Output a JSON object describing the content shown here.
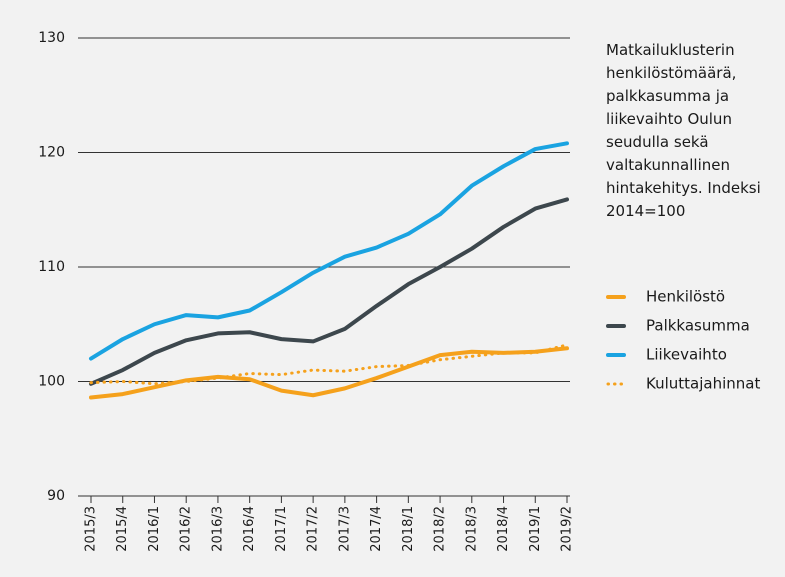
{
  "chart_data": {
    "type": "line",
    "title": "Matkailuklusterin henkilöstömäärä, palkkasumma ja liikevaihto Oulun seudulla sekä valtakunnallinen hintakehitys. Indeksi 2014=100",
    "categories": [
      "2015/3",
      "2015/4",
      "2016/1",
      "2016/2",
      "2016/3",
      "2016/4",
      "2017/1",
      "2017/2",
      "2017/3",
      "2017/4",
      "2018/1",
      "2018/2",
      "2018/3",
      "2018/4",
      "2019/1",
      "2019/2"
    ],
    "series": [
      {
        "name": "Henkilöstö",
        "color": "#f5a11c",
        "style": "solid",
        "values": [
          98.6,
          98.9,
          99.5,
          100.1,
          100.4,
          100.2,
          99.2,
          98.8,
          99.4,
          100.3,
          101.3,
          102.3,
          102.6,
          102.5,
          102.6,
          102.9
        ]
      },
      {
        "name": "Palkkasumma",
        "color": "#3d474d",
        "style": "solid",
        "values": [
          99.8,
          101.0,
          102.5,
          103.6,
          104.2,
          104.3,
          103.7,
          103.5,
          104.6,
          106.6,
          108.5,
          110.0,
          111.6,
          113.5,
          115.1,
          115.9
        ]
      },
      {
        "name": "Liikevaihto",
        "color": "#1aa3e1",
        "style": "solid",
        "values": [
          102.0,
          103.7,
          105.0,
          105.8,
          105.6,
          106.2,
          107.8,
          109.5,
          110.9,
          111.7,
          112.9,
          114.6,
          117.1,
          118.8,
          120.3,
          120.8
        ]
      },
      {
        "name": "Kuluttajahinnat",
        "color": "#f5a11c",
        "style": "dotted",
        "values": [
          99.9,
          100.0,
          99.8,
          100.0,
          100.3,
          100.7,
          100.6,
          101.0,
          100.9,
          101.3,
          101.4,
          101.9,
          102.2,
          102.5,
          102.5,
          103.2
        ]
      }
    ],
    "ylim": [
      90,
      130
    ],
    "yticks": [
      90,
      100,
      110,
      120,
      130
    ],
    "grid": true
  }
}
